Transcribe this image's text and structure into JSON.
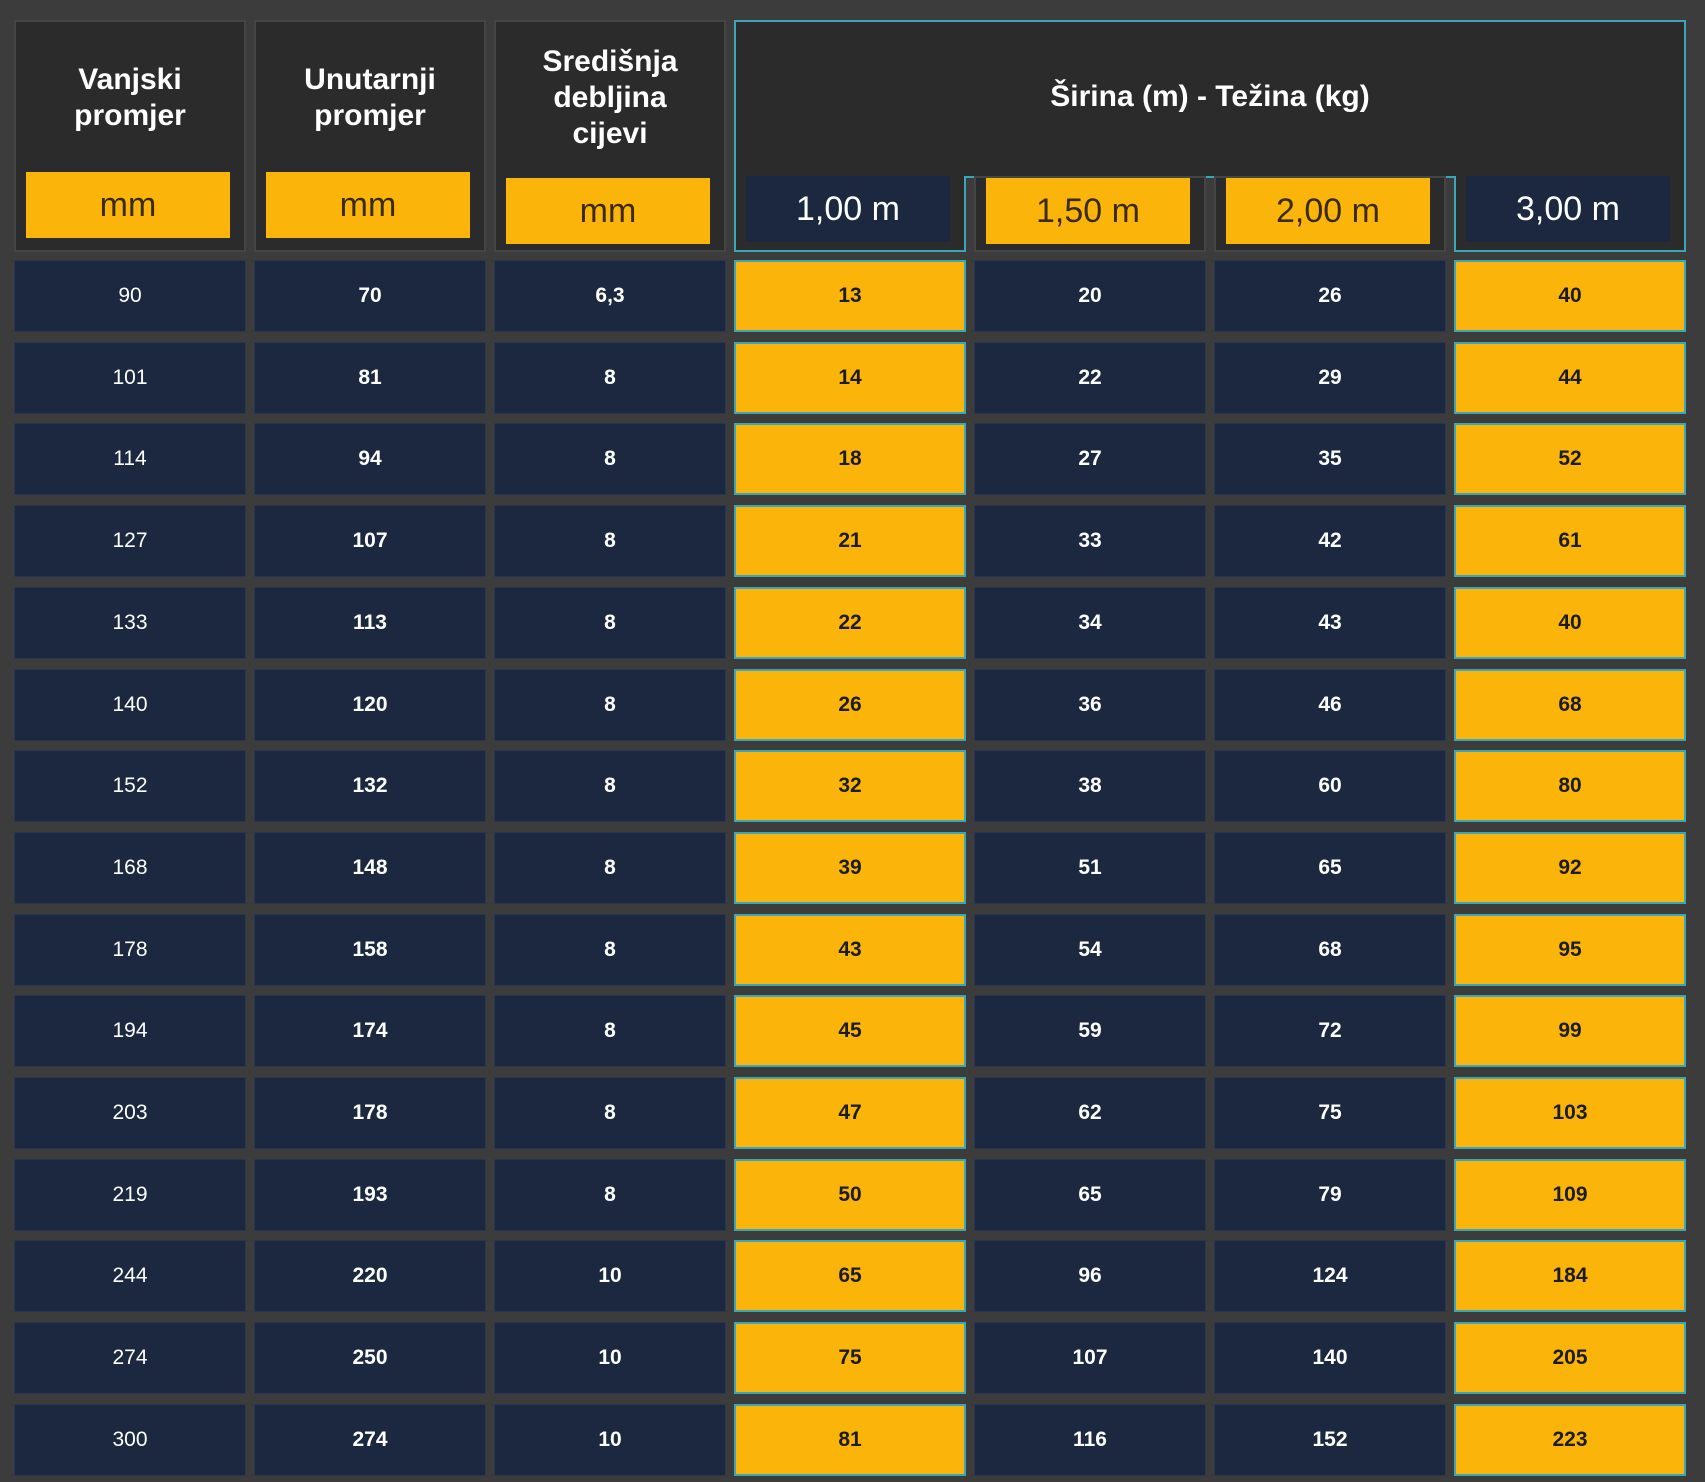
{
  "header": {
    "col1_title": "Vanjski promjer",
    "col2_title": "Unutarnji promjer",
    "col3_title": "Središnja debljina cijevi",
    "group_title": "Širina (m) - Težina (kg)",
    "units": [
      "mm",
      "mm",
      "mm"
    ],
    "widths": [
      "1,00 m",
      "1,50 m",
      "2,00 m",
      "3,00 m"
    ]
  },
  "rows": [
    [
      "90",
      "70",
      "6,3",
      "13",
      "20",
      "26",
      "40"
    ],
    [
      "101",
      "81",
      "8",
      "14",
      "22",
      "29",
      "44"
    ],
    [
      "114",
      "94",
      "8",
      "18",
      "27",
      "35",
      "52"
    ],
    [
      "127",
      "107",
      "8",
      "21",
      "33",
      "42",
      "61"
    ],
    [
      "133",
      "113",
      "8",
      "22",
      "34",
      "43",
      "40"
    ],
    [
      "140",
      "120",
      "8",
      "26",
      "36",
      "46",
      "68"
    ],
    [
      "152",
      "132",
      "8",
      "32",
      "38",
      "60",
      "80"
    ],
    [
      "168",
      "148",
      "8",
      "39",
      "51",
      "65",
      "92"
    ],
    [
      "178",
      "158",
      "8",
      "43",
      "54",
      "68",
      "95"
    ],
    [
      "194",
      "174",
      "8",
      "45",
      "59",
      "72",
      "99"
    ],
    [
      "203",
      "178",
      "8",
      "47",
      "62",
      "75",
      "103"
    ],
    [
      "219",
      "193",
      "8",
      "50",
      "65",
      "79",
      "109"
    ],
    [
      "244",
      "220",
      "10",
      "65",
      "96",
      "124",
      "184"
    ],
    [
      "274",
      "250",
      "10",
      "75",
      "107",
      "140",
      "205"
    ],
    [
      "300",
      "274",
      "10",
      "81",
      "116",
      "152",
      "223"
    ]
  ],
  "colors": {
    "accent_yellow": "#fbb50a",
    "navy_cell": "#1b2840",
    "header_bg": "#2b2b2b",
    "highlight_border": "#3aa7b8"
  }
}
